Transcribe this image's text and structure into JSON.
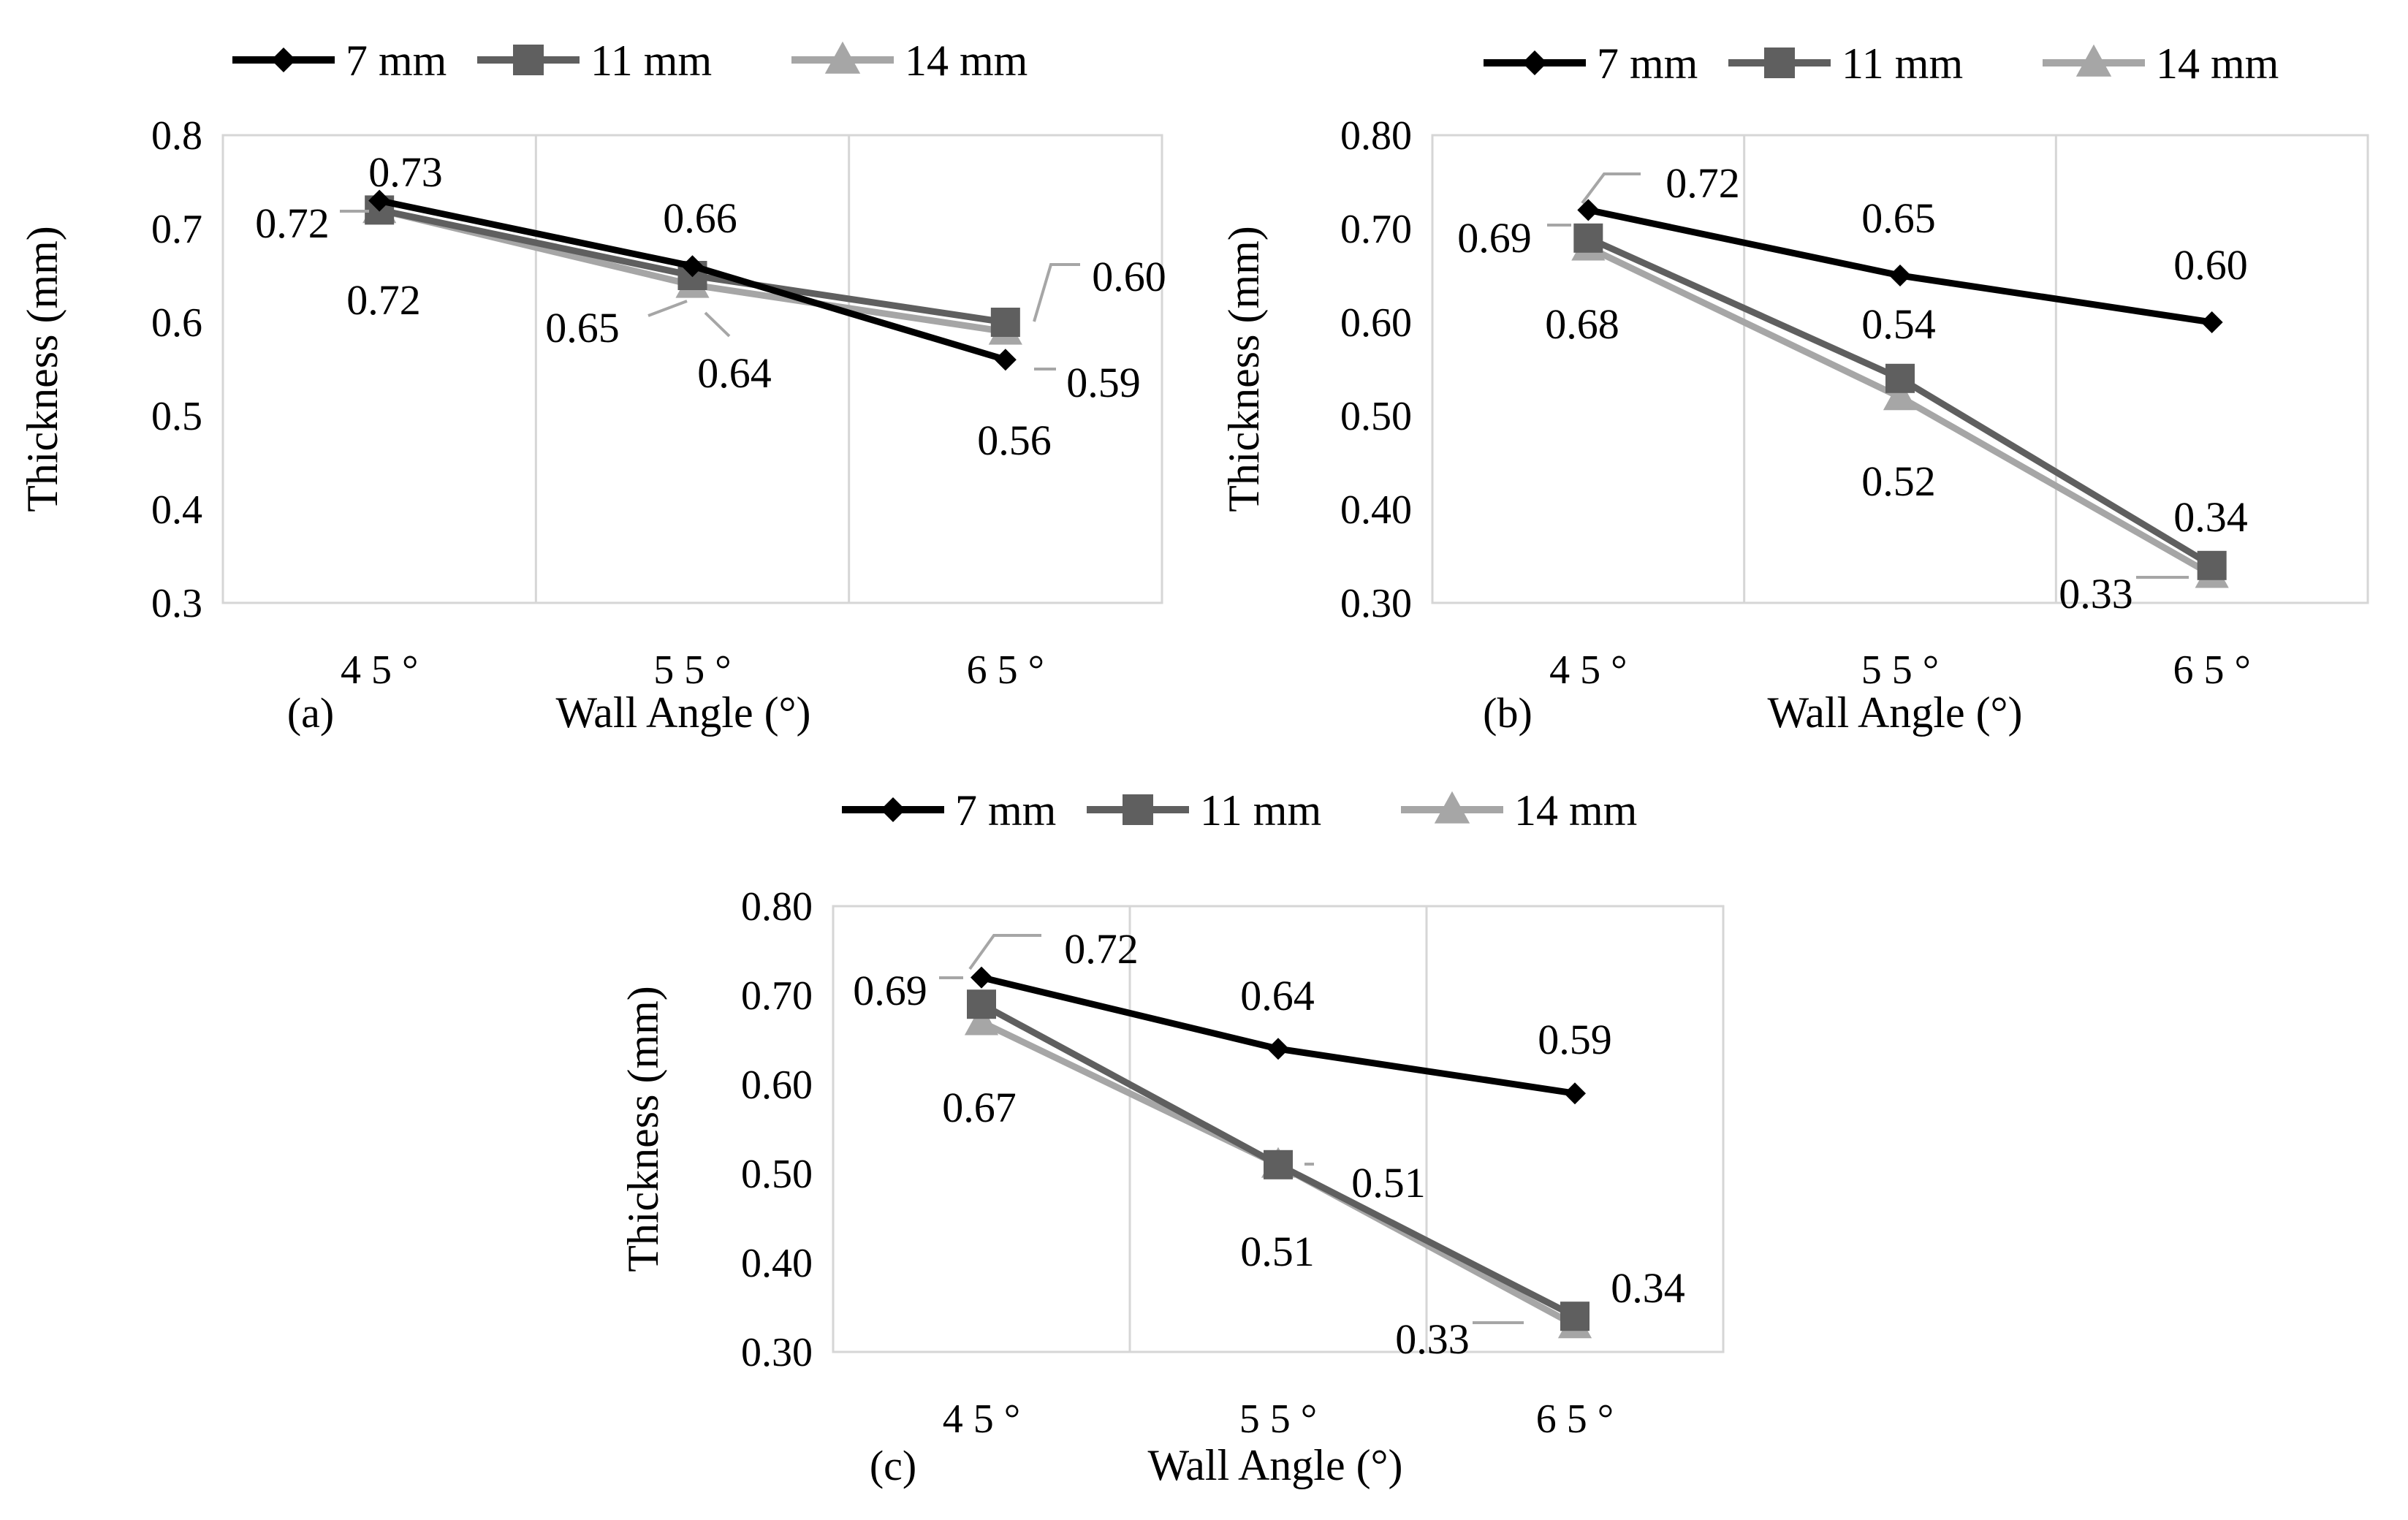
{
  "colors": {
    "7 mm": "#000000",
    "11 mm": "#5f5f5f",
    "14 mm": "#a6a6a6",
    "grid": "#d6d6d6"
  },
  "chart_data": [
    {
      "type": "line",
      "panel_label": "(a)",
      "categories": [
        "4 5 °",
        "5 5 °",
        "6 5 °"
      ],
      "xlabel": "Wall Angle (°)",
      "ylabel": "Thickness (mm)",
      "ylim": [
        0.3,
        0.8
      ],
      "yticks": [
        "0.3",
        "0.4",
        "0.5",
        "0.6",
        "0.7",
        "0.8"
      ],
      "legend": "top",
      "grid": "vertical",
      "series": [
        {
          "name": "7 mm",
          "marker": "diamond",
          "values": [
            0.73,
            0.66,
            0.56
          ],
          "labels": [
            "0.73",
            "0.66",
            "0.56"
          ]
        },
        {
          "name": "11 mm",
          "marker": "square",
          "values": [
            0.72,
            0.65,
            0.6
          ],
          "labels": [
            "0.72",
            "0.65",
            "0.60"
          ]
        },
        {
          "name": "14 mm",
          "marker": "triangle",
          "values": [
            0.72,
            0.64,
            0.59
          ],
          "labels": [
            "0.72",
            "0.64",
            "0.59"
          ]
        }
      ]
    },
    {
      "type": "line",
      "panel_label": "(b)",
      "categories": [
        "4 5 °",
        "5 5 °",
        "6 5 °"
      ],
      "xlabel": "Wall Angle (°)",
      "ylabel": "Thickness (mm)",
      "ylim": [
        0.3,
        0.8
      ],
      "yticks": [
        "0.30",
        "0.40",
        "0.50",
        "0.60",
        "0.70",
        "0.80"
      ],
      "legend": "top",
      "grid": "vertical",
      "series": [
        {
          "name": "7 mm",
          "marker": "diamond",
          "values": [
            0.72,
            0.65,
            0.6
          ],
          "labels": [
            "0.72",
            "0.65",
            "0.60"
          ]
        },
        {
          "name": "11 mm",
          "marker": "square",
          "values": [
            0.69,
            0.54,
            0.34
          ],
          "labels": [
            "0.69",
            "0.54",
            "0.34"
          ]
        },
        {
          "name": "14 mm",
          "marker": "triangle",
          "values": [
            0.68,
            0.52,
            0.33
          ],
          "labels": [
            "0.68",
            "0.52",
            "0.33"
          ]
        }
      ]
    },
    {
      "type": "line",
      "panel_label": "(c)",
      "categories": [
        "4 5 °",
        "5 5 °",
        "6 5 °"
      ],
      "xlabel": "Wall Angle (°)",
      "ylabel": "Thickness (mm)",
      "ylim": [
        0.3,
        0.8
      ],
      "yticks": [
        "0.30",
        "0.40",
        "0.50",
        "0.60",
        "0.70",
        "0.80"
      ],
      "legend": "top",
      "grid": "vertical",
      "series": [
        {
          "name": "7 mm",
          "marker": "diamond",
          "values": [
            0.72,
            0.64,
            0.59
          ],
          "labels": [
            "0.72",
            "0.64",
            "0.59"
          ]
        },
        {
          "name": "11 mm",
          "marker": "square",
          "values": [
            0.69,
            0.51,
            0.34
          ],
          "labels": [
            "0.69",
            "0.51",
            "0.34"
          ]
        },
        {
          "name": "14 mm",
          "marker": "triangle",
          "values": [
            0.67,
            0.51,
            0.33
          ],
          "labels": [
            "0.67",
            "0.51",
            "0.33"
          ]
        }
      ]
    }
  ]
}
